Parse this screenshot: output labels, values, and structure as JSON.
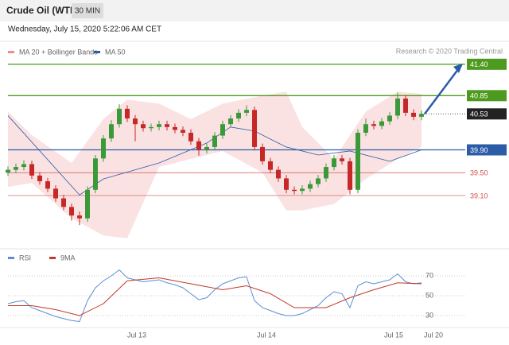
{
  "header": {
    "title": "Crude Oil (WTI)",
    "timeframe": "30 MIN",
    "date": "Wednesday, July 15, 2020 5:22:06 AM CET"
  },
  "chart_data": [
    {
      "type": "candlestick",
      "source": "Research © 2020 Trading Central",
      "up_color": "#3a9a3a",
      "down_color": "#c62828",
      "xlim": [
        0,
        57.5
      ],
      "xticks": [
        {
          "value": 16.2,
          "label": "Jul 13"
        },
        {
          "value": 32.5,
          "label": "Jul 14"
        },
        {
          "value": 48.5,
          "label": "Jul 15"
        },
        {
          "value": 53.5,
          "label": "Jul 20"
        }
      ],
      "ylim": [
        38.18,
        41.76
      ],
      "candles": [
        [
          39.5,
          39.61,
          39.44,
          39.55
        ],
        [
          39.55,
          39.66,
          39.49,
          39.6
        ],
        [
          39.6,
          39.72,
          39.54,
          39.65
        ],
        [
          39.65,
          39.71,
          39.39,
          39.45
        ],
        [
          39.45,
          39.51,
          39.29,
          39.35
        ],
        [
          39.35,
          39.41,
          39.16,
          39.22
        ],
        [
          39.22,
          39.28,
          38.99,
          39.05
        ],
        [
          39.05,
          39.11,
          38.84,
          38.9
        ],
        [
          38.9,
          38.96,
          38.66,
          38.75
        ],
        [
          38.75,
          38.82,
          38.58,
          38.7
        ],
        [
          38.7,
          39.26,
          38.64,
          39.2
        ],
        [
          39.2,
          39.81,
          39.14,
          39.75
        ],
        [
          39.75,
          40.16,
          39.69,
          40.1
        ],
        [
          40.1,
          40.42,
          40.04,
          40.35
        ],
        [
          40.35,
          40.7,
          40.29,
          40.62
        ],
        [
          40.62,
          40.68,
          40.39,
          40.45
        ],
        [
          40.45,
          40.51,
          40.05,
          40.35
        ],
        [
          40.35,
          40.41,
          40.22,
          40.28
        ],
        [
          40.28,
          40.36,
          40.22,
          40.3
        ],
        [
          40.3,
          40.41,
          40.24,
          40.35
        ],
        [
          40.35,
          40.41,
          40.24,
          40.3
        ],
        [
          40.3,
          40.36,
          40.19,
          40.25
        ],
        [
          40.25,
          40.31,
          40.14,
          40.2
        ],
        [
          40.2,
          40.26,
          39.99,
          40.05
        ],
        [
          40.05,
          40.11,
          39.8,
          39.9
        ],
        [
          39.9,
          40.01,
          39.84,
          39.95
        ],
        [
          39.95,
          40.21,
          39.89,
          40.15
        ],
        [
          40.15,
          40.41,
          40.09,
          40.35
        ],
        [
          40.35,
          40.51,
          40.29,
          40.45
        ],
        [
          40.45,
          40.61,
          40.39,
          40.55
        ],
        [
          40.55,
          40.68,
          40.49,
          40.6
        ],
        [
          40.6,
          40.66,
          39.89,
          39.95
        ],
        [
          39.95,
          40.01,
          39.64,
          39.7
        ],
        [
          39.7,
          39.76,
          39.49,
          39.55
        ],
        [
          39.55,
          39.61,
          39.34,
          39.4
        ],
        [
          39.4,
          39.46,
          39.14,
          39.2
        ],
        [
          39.2,
          39.26,
          39.12,
          39.18
        ],
        [
          39.18,
          39.28,
          39.12,
          39.22
        ],
        [
          39.22,
          39.36,
          39.16,
          39.3
        ],
        [
          39.3,
          39.46,
          39.24,
          39.4
        ],
        [
          39.4,
          39.66,
          39.34,
          39.6
        ],
        [
          39.6,
          39.81,
          39.54,
          39.75
        ],
        [
          39.75,
          39.81,
          39.64,
          39.7
        ],
        [
          39.7,
          39.76,
          39.12,
          39.2
        ],
        [
          39.2,
          40.26,
          39.14,
          40.2
        ],
        [
          40.2,
          40.45,
          40.14,
          40.35
        ],
        [
          40.35,
          40.41,
          40.26,
          40.32
        ],
        [
          40.32,
          40.46,
          40.26,
          40.4
        ],
        [
          40.4,
          40.56,
          40.34,
          40.5
        ],
        [
          40.5,
          40.9,
          40.44,
          40.8
        ],
        [
          40.8,
          40.86,
          40.49,
          40.55
        ],
        [
          40.55,
          40.61,
          40.42,
          40.48
        ],
        [
          40.48,
          40.59,
          40.42,
          40.53
        ]
      ],
      "series": [
        {
          "name": "MA 20 + Bollinger Bands",
          "color": "#f08a8a",
          "x": [
            0,
            3,
            8,
            12,
            15,
            19,
            23,
            27,
            32,
            35,
            37,
            41,
            45,
            49,
            52
          ],
          "upper": [
            40.57,
            40.16,
            39.67,
            40.44,
            40.78,
            40.71,
            40.44,
            40.71,
            40.85,
            40.92,
            40.3,
            39.74,
            40.57,
            40.92,
            40.88
          ],
          "lower": [
            39.25,
            39.32,
            38.7,
            38.4,
            38.35,
            39.6,
            39.74,
            39.88,
            39.5,
            38.84,
            38.84,
            38.95,
            39.39,
            39.74,
            39.95
          ]
        },
        {
          "name": "MA 50",
          "color": "#2b5ca8",
          "x": [
            0,
            9,
            12,
            19,
            25,
            28,
            31,
            35,
            39,
            43,
            48,
            52
          ],
          "values": [
            40.5,
            39.11,
            39.39,
            39.67,
            40.02,
            40.3,
            40.23,
            39.95,
            39.81,
            39.88,
            39.7,
            39.9
          ]
        }
      ],
      "levels": [
        {
          "value": 41.4,
          "label": "41.40",
          "color": "#4e9a1e",
          "boxed": true
        },
        {
          "value": 40.85,
          "label": "40.85",
          "color": "#4e9a1e",
          "boxed": true
        },
        {
          "value": 39.9,
          "label": "39.90",
          "color": "#2b5ca8",
          "boxed": true
        },
        {
          "value": 39.5,
          "label": "39.50",
          "color": "#d05050",
          "boxed": false
        },
        {
          "value": 39.1,
          "label": "39.10",
          "color": "#d05050",
          "boxed": false
        }
      ],
      "last_price": 40.53
    },
    {
      "type": "line",
      "ylim": [
        19.6,
        87.6
      ],
      "yticks": [
        30,
        50,
        70
      ],
      "grid": true,
      "series": [
        {
          "name": "RSI",
          "color": "#5b8fd0",
          "x": [
            0,
            1,
            2,
            3,
            4,
            5,
            6,
            7,
            8,
            9,
            10,
            11,
            12,
            13,
            14,
            15,
            16,
            17,
            18,
            19,
            20,
            21,
            22,
            23,
            24,
            25,
            26,
            27,
            28,
            29,
            30,
            31,
            32,
            33,
            34,
            35,
            36,
            37,
            38,
            39,
            40,
            41,
            42,
            43,
            44,
            45,
            46,
            47,
            48,
            49,
            50,
            51,
            52
          ],
          "values": [
            42,
            44,
            45,
            38,
            35,
            32,
            29,
            27,
            25,
            24,
            45,
            58,
            65,
            70,
            76,
            68,
            66,
            64,
            65,
            66,
            63,
            61,
            58,
            52,
            46,
            48,
            56,
            62,
            65,
            68,
            69,
            45,
            38,
            35,
            32,
            30,
            30,
            32,
            36,
            40,
            48,
            54,
            52,
            38,
            60,
            64,
            62,
            64,
            66,
            72,
            64,
            62,
            63
          ]
        },
        {
          "name": "9MA",
          "color": "#c0392b",
          "x": [
            0,
            3,
            6,
            9,
            12,
            15,
            19,
            23,
            27,
            30,
            33,
            36,
            40,
            43,
            46,
            49,
            52
          ],
          "values": [
            40,
            40,
            36,
            30,
            42,
            65,
            68,
            62,
            56,
            60,
            52,
            38,
            38,
            48,
            56,
            63,
            62
          ]
        }
      ]
    }
  ]
}
